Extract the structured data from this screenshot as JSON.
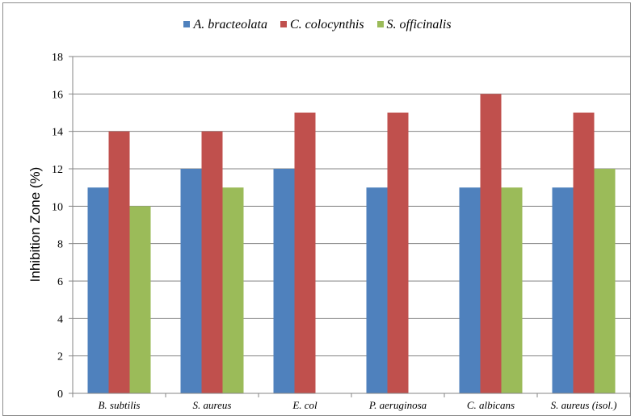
{
  "chart_data": {
    "type": "bar",
    "categories": [
      "B. subtilis",
      "S. aureus",
      "E. col",
      "P. aeruginosa",
      "C. albicans",
      "S. aureus (isol.)"
    ],
    "series": [
      {
        "name": "A. bracteolata",
        "color": "#4f81bd",
        "values": [
          11,
          12,
          12,
          11,
          11,
          11
        ]
      },
      {
        "name": "C. colocynthis",
        "color": "#c0504d",
        "values": [
          14,
          14,
          15,
          15,
          16,
          15
        ]
      },
      {
        "name": "S. officinalis",
        "color": "#9bbb59",
        "values": [
          10,
          11,
          null,
          null,
          11,
          12
        ]
      }
    ],
    "ylabel": "Inhibition Zone (%)",
    "ylim": [
      0,
      18
    ],
    "yticks": [
      0,
      2,
      4,
      6,
      8,
      10,
      12,
      14,
      16,
      18
    ],
    "grid": true,
    "legend_position": "top"
  }
}
